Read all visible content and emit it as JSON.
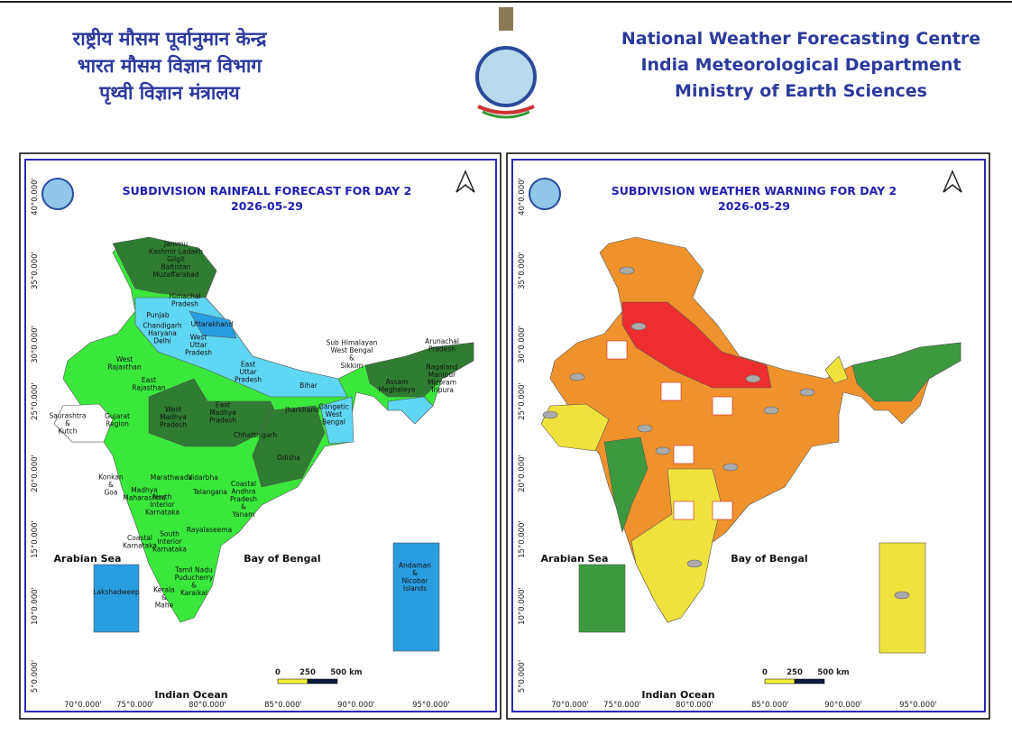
{
  "header": {
    "hindi_lines": [
      "राष्ट्रीय मौसम पूर्वानुमान केन्द्र",
      "भारत मौसम विज्ञान विभाग",
      "पृथ्वी विज्ञान मंत्रालय"
    ],
    "english_lines": [
      "National Weather Forecasting Centre",
      "India Meteorological Department",
      "Ministry of Earth Sciences"
    ]
  },
  "axes": {
    "lat": [
      "40°0.000'",
      "35°0.000'",
      "30°0.000'",
      "25°0.000'",
      "20°0.000'",
      "15°0.000'",
      "10°0.000'",
      "5°0.000'"
    ],
    "lon": [
      "70°0.000'",
      "75°0.000'",
      "80°0.000'",
      "85°0.000'",
      "90°0.000'",
      "95°0.000'"
    ],
    "scale": [
      "0",
      "250",
      "500 km"
    ],
    "seas": [
      "Arabian Sea",
      "Bay of Bengal",
      "Indian Ocean"
    ]
  },
  "panels": [
    {
      "title": "SUBDIVISION RAINFALL FORECAST FOR DAY 2",
      "date": "2026-05-29",
      "regions": [
        [
          "Jammu",
          "Kashmir Ladakh",
          "Gilgit",
          "Baltistan",
          "Muzaffarabad"
        ],
        [
          "Himachal",
          "Pradesh"
        ],
        [
          "Punjab"
        ],
        [
          "Uttarakhand"
        ],
        [
          "Chandigarh",
          "Haryana",
          "Delhi"
        ],
        [
          "West",
          "Uttar",
          "Pradesh"
        ],
        [
          "West",
          "Rajasthan"
        ],
        [
          "East",
          "Rajasthan"
        ],
        [
          "East",
          "Uttar",
          "Pradesh"
        ],
        [
          "Bihar"
        ],
        [
          "Sub Himalayan",
          "West Bengal",
          "&",
          "Sikkim"
        ],
        [
          "Arunachal",
          "Pradesh"
        ],
        [
          "Assam",
          "Meghalaya"
        ],
        [
          "Nagaland",
          "Manipur",
          "Mizoram",
          "Tripura"
        ],
        [
          "Jharkhand"
        ],
        [
          "Gangetic",
          "West",
          "Bengal"
        ],
        [
          "Saurashtra",
          "&",
          "Kutch"
        ],
        [
          "Gujarat",
          "Region"
        ],
        [
          "West",
          "Madhya",
          "Pradesh"
        ],
        [
          "East",
          "Madhya",
          "Pradesh"
        ],
        [
          "Chhattisgarh"
        ],
        [
          "Odisha"
        ],
        [
          "Vidarbha"
        ],
        [
          "Marathwada"
        ],
        [
          "Konkan",
          "&",
          "Goa"
        ],
        [
          "Madhya",
          "Maharashtra"
        ],
        [
          "Telangana"
        ],
        [
          "North",
          "Interior",
          "Karnataka"
        ],
        [
          "Coastal",
          "Andhra",
          "Pradesh",
          "&",
          "Yanam"
        ],
        [
          "Rayalaseema"
        ],
        [
          "Coastal",
          "Karnataka"
        ],
        [
          "South",
          "Interior",
          "Karnataka"
        ],
        [
          "Tamil Nadu",
          "Puducherry",
          "&",
          "Karaikal"
        ],
        [
          "Kerala",
          "&",
          "Mahe"
        ],
        [
          "Lakshadweep"
        ],
        [
          "Andaman",
          "&",
          "Nicobar",
          "Islands"
        ]
      ]
    },
    {
      "title": "SUBDIVISION WEATHER WARNING FOR DAY 2",
      "date": "2026-05-29"
    }
  ]
}
